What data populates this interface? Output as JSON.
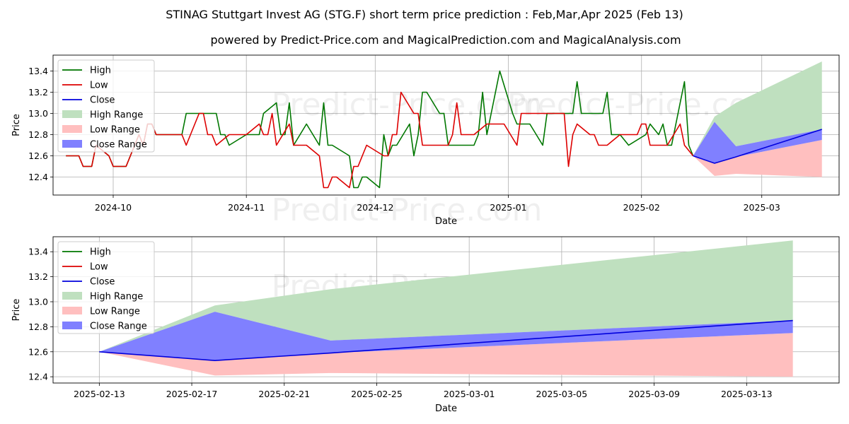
{
  "title": "STINAG Stuttgart Invest AG (STG.F) short term price prediction : Feb,Mar,Apr 2025 (Feb 13)",
  "subtitle": "powered by Predict-Price.com and MagicalPrediction.com and MagicalAnalysis.com",
  "watermark": "Predict-Price.com",
  "colors": {
    "high": "#007700",
    "low": "#dd0000",
    "close": "#0000dd",
    "high_range": "#bfe0bf",
    "low_range": "#ffbfbf",
    "close_range": "#8080ff"
  },
  "chart_data": [
    {
      "type": "line",
      "xlabel": "Date",
      "ylabel": "Price",
      "xlim": [
        "2024-09-17",
        "2025-03-19"
      ],
      "ylim": [
        12.23,
        13.55
      ],
      "grid": true,
      "legend_position": "top-left",
      "legend": [
        "High",
        "Low",
        "Close",
        "High Range",
        "Low Range",
        "Close Range"
      ],
      "x_ticks": [
        "2024-10",
        "2024-11",
        "2024-12",
        "2025-01",
        "2025-02",
        "2025-03"
      ],
      "x_tick_dates": [
        "2024-10-01",
        "2024-11-01",
        "2024-12-01",
        "2025-01-01",
        "2025-02-01",
        "2025-03-01"
      ],
      "y_ticks": [
        "12.4",
        "12.6",
        "12.8",
        "13.0",
        "13.2",
        "13.4"
      ],
      "y_tick_values": [
        12.4,
        12.6,
        12.8,
        13.0,
        13.2,
        13.4
      ],
      "series": [
        {
          "name": "High",
          "points": [
            [
              "2024-09-20",
              12.6
            ],
            [
              "2024-09-23",
              12.6
            ],
            [
              "2024-09-24",
              12.5
            ],
            [
              "2024-09-26",
              12.5
            ],
            [
              "2024-09-27",
              12.7
            ],
            [
              "2024-09-30",
              12.6
            ],
            [
              "2024-10-01",
              12.5
            ],
            [
              "2024-10-04",
              12.5
            ],
            [
              "2024-10-07",
              12.8
            ],
            [
              "2024-10-08",
              12.7
            ],
            [
              "2024-10-09",
              12.9
            ],
            [
              "2024-10-10",
              12.9
            ],
            [
              "2024-10-11",
              12.8
            ],
            [
              "2024-10-17",
              12.8
            ],
            [
              "2024-10-18",
              13.0
            ],
            [
              "2024-10-21",
              13.0
            ],
            [
              "2024-10-22",
              13.0
            ],
            [
              "2024-10-25",
              13.0
            ],
            [
              "2024-10-26",
              12.8
            ],
            [
              "2024-10-27",
              12.8
            ],
            [
              "2024-10-28",
              12.7
            ],
            [
              "2024-11-01",
              12.8
            ],
            [
              "2024-11-04",
              12.8
            ],
            [
              "2024-11-05",
              13.0
            ],
            [
              "2024-11-08",
              13.1
            ],
            [
              "2024-11-09",
              12.8
            ],
            [
              "2024-11-10",
              12.8
            ],
            [
              "2024-11-11",
              13.1
            ],
            [
              "2024-11-12",
              12.7
            ],
            [
              "2024-11-15",
              12.9
            ],
            [
              "2024-11-18",
              12.7
            ],
            [
              "2024-11-19",
              13.1
            ],
            [
              "2024-11-20",
              12.7
            ],
            [
              "2024-11-21",
              12.7
            ],
            [
              "2024-11-25",
              12.6
            ],
            [
              "2024-11-26",
              12.3
            ],
            [
              "2024-11-27",
              12.3
            ],
            [
              "2024-11-28",
              12.4
            ],
            [
              "2024-11-29",
              12.4
            ],
            [
              "2024-12-02",
              12.3
            ],
            [
              "2024-12-03",
              12.8
            ],
            [
              "2024-12-04",
              12.6
            ],
            [
              "2024-12-05",
              12.7
            ],
            [
              "2024-12-06",
              12.7
            ],
            [
              "2024-12-09",
              12.9
            ],
            [
              "2024-12-10",
              12.6
            ],
            [
              "2024-12-11",
              12.8
            ],
            [
              "2024-12-12",
              13.2
            ],
            [
              "2024-12-13",
              13.2
            ],
            [
              "2024-12-16",
              13.0
            ],
            [
              "2024-12-17",
              13.0
            ],
            [
              "2024-12-18",
              12.7
            ],
            [
              "2024-12-24",
              12.7
            ],
            [
              "2024-12-25",
              12.8
            ],
            [
              "2024-12-26",
              13.2
            ],
            [
              "2024-12-27",
              12.8
            ],
            [
              "2024-12-30",
              13.4
            ],
            [
              "2025-01-02",
              13.0
            ],
            [
              "2025-01-03",
              12.9
            ],
            [
              "2025-01-06",
              12.9
            ],
            [
              "2025-01-09",
              12.7
            ],
            [
              "2025-01-10",
              13.0
            ],
            [
              "2025-01-16",
              13.0
            ],
            [
              "2025-01-17",
              13.3
            ],
            [
              "2025-01-18",
              13.0
            ],
            [
              "2025-01-23",
              13.0
            ],
            [
              "2025-01-24",
              13.2
            ],
            [
              "2025-01-25",
              12.8
            ],
            [
              "2025-01-27",
              12.8
            ],
            [
              "2025-01-29",
              12.7
            ],
            [
              "2025-02-02",
              12.8
            ],
            [
              "2025-02-03",
              12.9
            ],
            [
              "2025-02-05",
              12.8
            ],
            [
              "2025-02-06",
              12.9
            ],
            [
              "2025-02-07",
              12.7
            ],
            [
              "2025-02-08",
              12.7
            ],
            [
              "2025-02-11",
              13.3
            ],
            [
              "2025-02-12",
              12.7
            ],
            [
              "2025-02-13",
              12.6
            ]
          ]
        },
        {
          "name": "Low",
          "points": [
            [
              "2024-09-20",
              12.6
            ],
            [
              "2024-09-23",
              12.6
            ],
            [
              "2024-09-24",
              12.5
            ],
            [
              "2024-09-26",
              12.5
            ],
            [
              "2024-09-27",
              12.7
            ],
            [
              "2024-09-30",
              12.6
            ],
            [
              "2024-10-01",
              12.5
            ],
            [
              "2024-10-04",
              12.5
            ],
            [
              "2024-10-07",
              12.8
            ],
            [
              "2024-10-08",
              12.7
            ],
            [
              "2024-10-09",
              12.9
            ],
            [
              "2024-10-10",
              12.9
            ],
            [
              "2024-10-11",
              12.8
            ],
            [
              "2024-10-17",
              12.8
            ],
            [
              "2024-10-18",
              12.7
            ],
            [
              "2024-10-21",
              13.0
            ],
            [
              "2024-10-22",
              13.0
            ],
            [
              "2024-10-23",
              12.8
            ],
            [
              "2024-10-24",
              12.8
            ],
            [
              "2024-10-25",
              12.7
            ],
            [
              "2024-10-28",
              12.8
            ],
            [
              "2024-11-01",
              12.8
            ],
            [
              "2024-11-04",
              12.9
            ],
            [
              "2024-11-05",
              12.8
            ],
            [
              "2024-11-06",
              12.8
            ],
            [
              "2024-11-07",
              13.0
            ],
            [
              "2024-11-08",
              12.7
            ],
            [
              "2024-11-11",
              12.9
            ],
            [
              "2024-11-12",
              12.7
            ],
            [
              "2024-11-15",
              12.7
            ],
            [
              "2024-11-18",
              12.6
            ],
            [
              "2024-11-19",
              12.3
            ],
            [
              "2024-11-20",
              12.3
            ],
            [
              "2024-11-21",
              12.4
            ],
            [
              "2024-11-22",
              12.4
            ],
            [
              "2024-11-25",
              12.3
            ],
            [
              "2024-11-26",
              12.5
            ],
            [
              "2024-11-27",
              12.5
            ],
            [
              "2024-11-29",
              12.7
            ],
            [
              "2024-12-03",
              12.6
            ],
            [
              "2024-12-04",
              12.6
            ],
            [
              "2024-12-05",
              12.8
            ],
            [
              "2024-12-06",
              12.8
            ],
            [
              "2024-12-07",
              13.2
            ],
            [
              "2024-12-10",
              13.0
            ],
            [
              "2024-12-11",
              13.0
            ],
            [
              "2024-12-12",
              12.7
            ],
            [
              "2024-12-18",
              12.7
            ],
            [
              "2024-12-19",
              12.8
            ],
            [
              "2024-12-20",
              13.1
            ],
            [
              "2024-12-21",
              12.8
            ],
            [
              "2024-12-24",
              12.8
            ],
            [
              "2024-12-27",
              12.9
            ],
            [
              "2024-12-31",
              12.9
            ],
            [
              "2025-01-03",
              12.7
            ],
            [
              "2025-01-04",
              13.0
            ],
            [
              "2025-01-14",
              13.0
            ],
            [
              "2025-01-15",
              12.5
            ],
            [
              "2025-01-16",
              12.8
            ],
            [
              "2025-01-17",
              12.9
            ],
            [
              "2025-01-20",
              12.8
            ],
            [
              "2025-01-21",
              12.8
            ],
            [
              "2025-01-22",
              12.7
            ],
            [
              "2025-01-24",
              12.7
            ],
            [
              "2025-01-27",
              12.8
            ],
            [
              "2025-01-28",
              12.8
            ],
            [
              "2025-01-31",
              12.8
            ],
            [
              "2025-02-01",
              12.9
            ],
            [
              "2025-02-02",
              12.9
            ],
            [
              "2025-02-03",
              12.7
            ],
            [
              "2025-02-07",
              12.7
            ],
            [
              "2025-02-10",
              12.9
            ],
            [
              "2025-02-11",
              12.7
            ],
            [
              "2025-02-13",
              12.6
            ]
          ]
        },
        {
          "name": "Close",
          "points": [
            [
              "2025-02-13",
              12.6
            ],
            [
              "2025-02-18",
              12.53
            ],
            [
              "2025-02-23",
              12.59
            ],
            [
              "2025-03-15",
              12.85
            ]
          ]
        },
        {
          "name": "High Range",
          "upper": [
            [
              "2025-02-13",
              12.6
            ],
            [
              "2025-02-18",
              12.97
            ],
            [
              "2025-02-23",
              13.1
            ],
            [
              "2025-03-15",
              13.49
            ]
          ],
          "lower": [
            [
              "2025-02-13",
              12.6
            ],
            [
              "2025-02-18",
              12.92
            ],
            [
              "2025-02-23",
              12.69
            ],
            [
              "2025-03-15",
              12.85
            ]
          ]
        },
        {
          "name": "Low Range",
          "upper": [
            [
              "2025-02-13",
              12.6
            ],
            [
              "2025-02-18",
              12.53
            ],
            [
              "2025-02-23",
              12.59
            ],
            [
              "2025-03-15",
              12.75
            ]
          ],
          "lower": [
            [
              "2025-02-13",
              12.6
            ],
            [
              "2025-02-18",
              12.41
            ],
            [
              "2025-02-23",
              12.43
            ],
            [
              "2025-03-15",
              12.4
            ]
          ]
        },
        {
          "name": "Close Range",
          "upper": [
            [
              "2025-02-13",
              12.6
            ],
            [
              "2025-02-18",
              12.92
            ],
            [
              "2025-02-23",
              12.69
            ],
            [
              "2025-03-15",
              12.85
            ]
          ],
          "lower": [
            [
              "2025-02-13",
              12.6
            ],
            [
              "2025-02-18",
              12.53
            ],
            [
              "2025-02-23",
              12.59
            ],
            [
              "2025-03-15",
              12.75
            ]
          ]
        }
      ]
    },
    {
      "type": "area",
      "xlabel": "Date",
      "ylabel": "Price",
      "xlim": [
        "2025-02-11",
        "2025-03-17"
      ],
      "ylim": [
        12.35,
        13.52
      ],
      "grid": true,
      "legend_position": "top-left",
      "legend": [
        "High",
        "Low",
        "Close",
        "High Range",
        "Low Range",
        "Close Range"
      ],
      "x_ticks": [
        "2025-02-13",
        "2025-02-17",
        "2025-02-21",
        "2025-02-25",
        "2025-03-01",
        "2025-03-05",
        "2025-03-09",
        "2025-03-13"
      ],
      "x_tick_dates": [
        "2025-02-13",
        "2025-02-17",
        "2025-02-21",
        "2025-02-25",
        "2025-03-01",
        "2025-03-05",
        "2025-03-09",
        "2025-03-13"
      ],
      "y_ticks": [
        "12.4",
        "12.6",
        "12.8",
        "13.0",
        "13.2",
        "13.4"
      ],
      "y_tick_values": [
        12.4,
        12.6,
        12.8,
        13.0,
        13.2,
        13.4
      ],
      "series": [
        {
          "name": "Close",
          "points": [
            [
              "2025-02-13",
              12.6
            ],
            [
              "2025-02-18",
              12.53
            ],
            [
              "2025-02-23",
              12.59
            ],
            [
              "2025-03-15",
              12.85
            ]
          ]
        },
        {
          "name": "High Range",
          "upper": [
            [
              "2025-02-13",
              12.6
            ],
            [
              "2025-02-18",
              12.97
            ],
            [
              "2025-02-23",
              13.1
            ],
            [
              "2025-03-15",
              13.49
            ]
          ],
          "lower": [
            [
              "2025-02-13",
              12.6
            ],
            [
              "2025-02-18",
              12.92
            ],
            [
              "2025-02-23",
              12.69
            ],
            [
              "2025-03-15",
              12.85
            ]
          ]
        },
        {
          "name": "Low Range",
          "upper": [
            [
              "2025-02-13",
              12.6
            ],
            [
              "2025-02-18",
              12.53
            ],
            [
              "2025-02-23",
              12.59
            ],
            [
              "2025-03-15",
              12.75
            ]
          ],
          "lower": [
            [
              "2025-02-13",
              12.6
            ],
            [
              "2025-02-18",
              12.41
            ],
            [
              "2025-02-23",
              12.43
            ],
            [
              "2025-03-15",
              12.4
            ]
          ]
        },
        {
          "name": "Close Range",
          "upper": [
            [
              "2025-02-13",
              12.6
            ],
            [
              "2025-02-18",
              12.92
            ],
            [
              "2025-02-23",
              12.69
            ],
            [
              "2025-03-15",
              12.85
            ]
          ],
          "lower": [
            [
              "2025-02-13",
              12.6
            ],
            [
              "2025-02-18",
              12.53
            ],
            [
              "2025-02-23",
              12.59
            ],
            [
              "2025-03-15",
              12.75
            ]
          ]
        }
      ]
    }
  ]
}
